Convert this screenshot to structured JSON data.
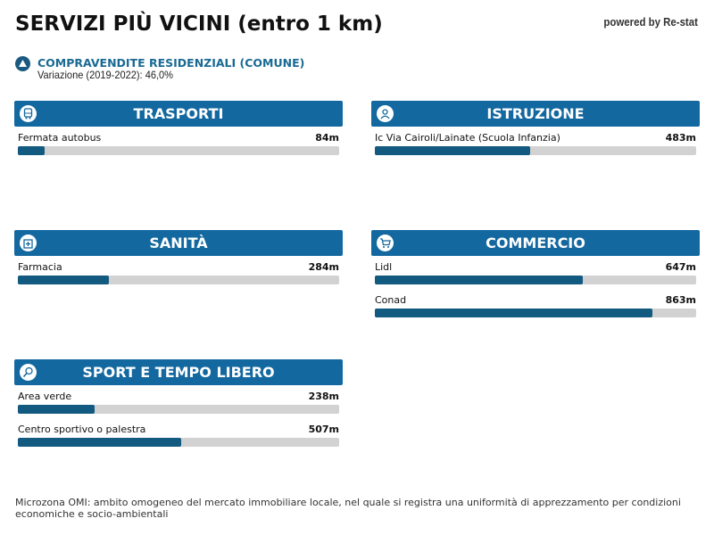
{
  "header": {
    "title": "SERVIZI PIÙ VICINI (entro 1 km)",
    "powered_by": "powered by Re-stat"
  },
  "trend": {
    "icon": "trend-up-icon",
    "title": "COMPRAVENDITE RESIDENZIALI (COMUNE)",
    "subtitle": "Variazione (2019-2022): 46,0%"
  },
  "sections": {
    "trasporti": {
      "title": "TRASPORTI",
      "icon": "bus-icon",
      "items": [
        {
          "name": "Fermata autobus",
          "distance": "84m",
          "fill": 0.084
        }
      ]
    },
    "istruzione": {
      "title": "ISTRUZIONE",
      "icon": "student-icon",
      "items": [
        {
          "name": "Ic Via Cairoli/Lainate (Scuola Infanzia)",
          "distance": "483m",
          "fill": 0.483
        }
      ]
    },
    "sanita": {
      "title": "SANITÀ",
      "icon": "hospital-icon",
      "items": [
        {
          "name": "Farmacia",
          "distance": "284m",
          "fill": 0.284
        }
      ]
    },
    "commercio": {
      "title": "COMMERCIO",
      "icon": "shopping-cart-icon",
      "items": [
        {
          "name": "Lidl",
          "distance": "647m",
          "fill": 0.647
        },
        {
          "name": "Conad",
          "distance": "863m",
          "fill": 0.863
        }
      ]
    },
    "sport": {
      "title": "SPORT E TEMPO LIBERO",
      "icon": "tennis-icon",
      "items": [
        {
          "name": "Area verde",
          "distance": "238m",
          "fill": 0.238
        },
        {
          "name": "Centro sportivo o palestra",
          "distance": "507m",
          "fill": 0.507
        }
      ]
    }
  },
  "colors": {
    "header_blue": "#1368a0",
    "bar_fill": "#135a80",
    "bar_track": "#d2d2d2",
    "accent_text": "#1a6a94"
  },
  "footnote": "Microzona OMI: ambito omogeneo del mercato immobiliare locale, nel quale si registra una uniformità di apprezzamento per condizioni economiche e socio-ambientali"
}
